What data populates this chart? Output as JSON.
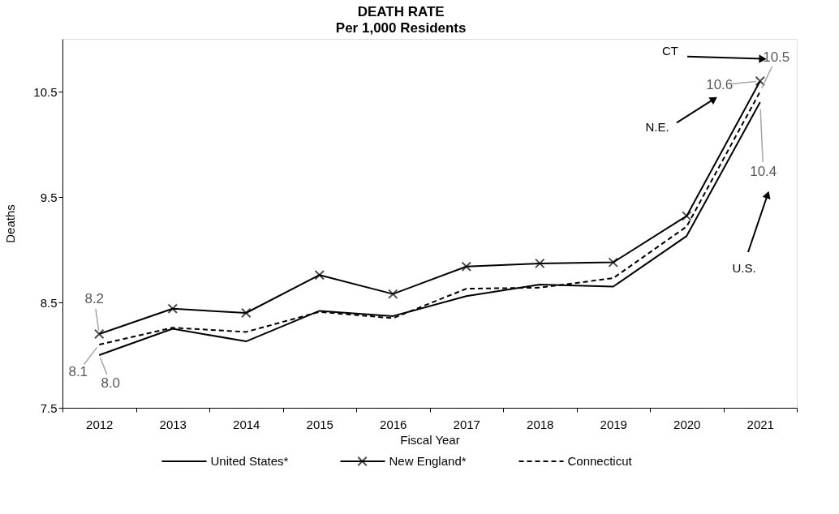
{
  "chart_data": {
    "type": "line",
    "title": "DEATH RATE",
    "subtitle": "Per 1,000 Residents",
    "xlabel": "Fiscal Year",
    "ylabel": "Deaths",
    "categories": [
      "2012",
      "2013",
      "2014",
      "2015",
      "2016",
      "2017",
      "2018",
      "2019",
      "2020",
      "2021"
    ],
    "series": [
      {
        "name": "United States*",
        "color": "#000000",
        "line_style": "solid",
        "marker": "none",
        "values": [
          8.0,
          8.25,
          8.13,
          8.42,
          8.37,
          8.56,
          8.67,
          8.65,
          9.13,
          10.4
        ]
      },
      {
        "name": "New England*",
        "color": "#000000",
        "line_style": "solid",
        "marker": "cross",
        "values": [
          8.2,
          8.44,
          8.4,
          8.76,
          8.58,
          8.84,
          8.87,
          8.88,
          9.32,
          10.6
        ]
      },
      {
        "name": "Connecticut",
        "color": "#000000",
        "line_style": "dashed",
        "marker": "none",
        "values": [
          8.1,
          8.26,
          8.22,
          8.41,
          8.35,
          8.63,
          8.64,
          8.73,
          9.22,
          10.5
        ]
      }
    ],
    "ylim": [
      7.5,
      11.0
    ],
    "yticks": [
      7.5,
      8.5,
      9.5,
      10.5
    ],
    "grid": false,
    "legend": "bottom",
    "annotations": [
      {
        "text": "8.2",
        "x": "2012",
        "y": 8.2
      },
      {
        "text": "8.1",
        "x": "2012",
        "y": 8.1
      },
      {
        "text": "8.0",
        "x": "2012",
        "y": 8.0
      },
      {
        "text": "10.6",
        "x": "2021",
        "y": 10.6
      },
      {
        "text": "10.5",
        "x": "2021",
        "y": 10.5
      },
      {
        "text": "10.4",
        "x": "2021",
        "y": 10.4
      },
      "CT",
      "N.E.",
      "U.S."
    ]
  }
}
